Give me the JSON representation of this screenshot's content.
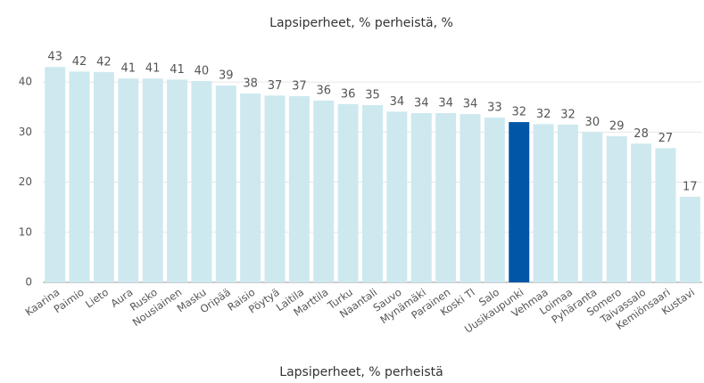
{
  "chart_data": {
    "type": "bar",
    "title": "Lapsiperheet, % perheistä, %",
    "x_label": "Lapsiperheet, % perheistä",
    "categories": [
      "Kaarina",
      "Paimio",
      "Lieto",
      "Aura",
      "Rusko",
      "Nousiainen",
      "Masku",
      "Oripää",
      "Raisio",
      "Pöytyä",
      "Laitila",
      "Marttila",
      "Turku",
      "Naantali",
      "Sauvo",
      "Mynämäki",
      "Parainen",
      "Koski Tl",
      "Salo",
      "Uusikaupunki",
      "Vehmaa",
      "Loimaa",
      "Pyhäranta",
      "Somero",
      "Taivassalo",
      "Kemiönsaari",
      "Kustavi"
    ],
    "values": [
      43.0,
      42.1,
      42.0,
      40.7,
      40.7,
      40.5,
      40.2,
      39.3,
      37.7,
      37.3,
      37.2,
      36.3,
      35.6,
      35.4,
      34.1,
      33.8,
      33.8,
      33.6,
      32.9,
      32.0,
      31.6,
      31.5,
      30.0,
      29.2,
      27.7,
      26.8,
      17.1
    ],
    "value_labels": [
      "43",
      "42",
      "42",
      "41",
      "41",
      "41",
      "40",
      "39",
      "38",
      "37",
      "37",
      "36",
      "36",
      "35",
      "34",
      "34",
      "34",
      "34",
      "33",
      "32",
      "32",
      "32",
      "30",
      "29",
      "28",
      "27",
      "17"
    ],
    "colors": [
      "#cde9ef",
      "#cde9ef",
      "#cde9ef",
      "#cde9ef",
      "#cde9ef",
      "#cde9ef",
      "#cde9ef",
      "#cde9ef",
      "#cde9ef",
      "#cde9ef",
      "#cde9ef",
      "#cde9ef",
      "#cde9ef",
      "#cde9ef",
      "#cde9ef",
      "#cde9ef",
      "#cde9ef",
      "#cde9ef",
      "#cde9ef",
      "#0057a8",
      "#cde9ef",
      "#cde9ef",
      "#cde9ef",
      "#cde9ef",
      "#cde9ef",
      "#cde9ef",
      "#cde9ef"
    ],
    "ylim": [
      0,
      45
    ],
    "yticks": [
      0,
      10,
      20,
      30,
      40
    ],
    "grid": true
  }
}
